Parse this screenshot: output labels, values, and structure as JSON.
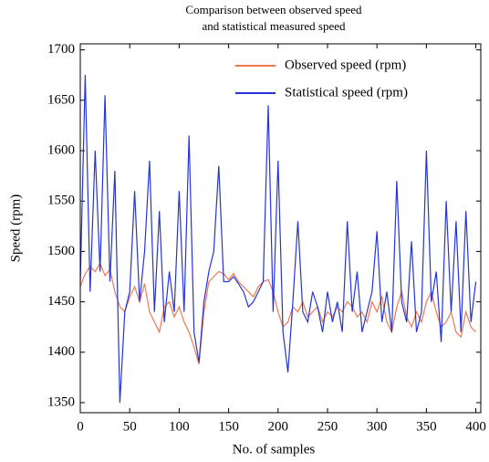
{
  "chart_data": {
    "type": "line",
    "title": [
      "Comparison between observed speed",
      "and statistical measured speed"
    ],
    "xlabel": "No. of samples",
    "ylabel": "Speed (rpm)",
    "x": [
      0,
      5,
      10,
      15,
      20,
      25,
      30,
      35,
      40,
      45,
      50,
      55,
      60,
      65,
      70,
      75,
      80,
      85,
      90,
      95,
      100,
      105,
      110,
      115,
      120,
      125,
      130,
      135,
      140,
      145,
      150,
      155,
      160,
      165,
      170,
      175,
      180,
      185,
      190,
      195,
      200,
      205,
      210,
      215,
      220,
      225,
      230,
      235,
      240,
      245,
      250,
      255,
      260,
      265,
      270,
      275,
      280,
      285,
      290,
      295,
      300,
      305,
      310,
      315,
      320,
      325,
      330,
      335,
      340,
      345,
      350,
      355,
      360,
      365,
      370,
      375,
      380,
      385,
      390,
      395,
      400
    ],
    "series": [
      {
        "name": "Observed speed (rpm)",
        "color": "#f07850",
        "values": [
          1465,
          1478,
          1485,
          1480,
          1488,
          1476,
          1482,
          1460,
          1445,
          1440,
          1455,
          1465,
          1450,
          1468,
          1440,
          1430,
          1420,
          1445,
          1450,
          1435,
          1445,
          1430,
          1420,
          1405,
          1388,
          1440,
          1470,
          1475,
          1480,
          1478,
          1472,
          1478,
          1470,
          1465,
          1460,
          1455,
          1465,
          1470,
          1472,
          1460,
          1440,
          1425,
          1430,
          1445,
          1440,
          1450,
          1435,
          1440,
          1445,
          1430,
          1440,
          1435,
          1445,
          1440,
          1450,
          1445,
          1435,
          1440,
          1430,
          1450,
          1440,
          1455,
          1430,
          1420,
          1445,
          1460,
          1435,
          1425,
          1440,
          1430,
          1450,
          1460,
          1440,
          1425,
          1430,
          1440,
          1420,
          1415,
          1440,
          1425,
          1420
        ]
      },
      {
        "name": "Statistical speed (rpm)",
        "color": "#2535d5",
        "values": [
          1470,
          1675,
          1460,
          1600,
          1480,
          1655,
          1470,
          1580,
          1350,
          1440,
          1460,
          1560,
          1450,
          1500,
          1590,
          1440,
          1540,
          1430,
          1480,
          1440,
          1560,
          1440,
          1615,
          1420,
          1390,
          1450,
          1480,
          1500,
          1585,
          1470,
          1470,
          1475,
          1468,
          1460,
          1445,
          1450,
          1460,
          1470,
          1645,
          1440,
          1590,
          1420,
          1380,
          1450,
          1530,
          1440,
          1430,
          1460,
          1445,
          1420,
          1460,
          1430,
          1450,
          1420,
          1530,
          1440,
          1480,
          1420,
          1440,
          1460,
          1520,
          1430,
          1460,
          1420,
          1570,
          1450,
          1430,
          1510,
          1420,
          1440,
          1600,
          1450,
          1480,
          1410,
          1550,
          1440,
          1530,
          1420,
          1540,
          1430,
          1470
        ]
      }
    ],
    "xlim": [
      0,
      405
    ],
    "xticks": [
      0,
      50,
      100,
      150,
      200,
      250,
      300,
      350,
      400
    ],
    "ylim": [
      1340,
      1706
    ],
    "yticks": [
      1350,
      1400,
      1450,
      1500,
      1550,
      1600,
      1650,
      1700
    ],
    "legend": "upper right"
  }
}
